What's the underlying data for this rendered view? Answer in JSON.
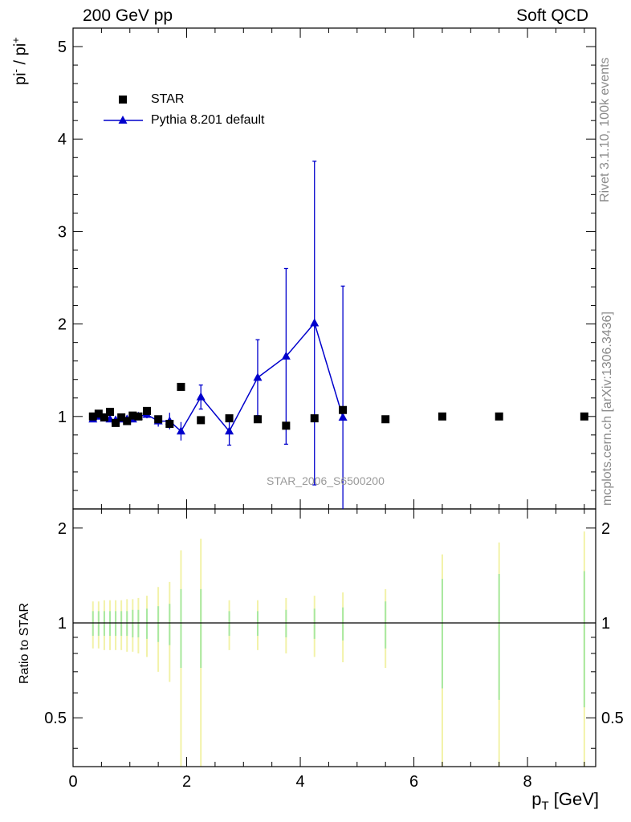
{
  "header": {
    "left": "200 GeV pp",
    "right": "Soft QCD"
  },
  "side": {
    "rivet": "Rivet 3.1.10,  100k events",
    "mcplots": "mcplots.cern.ch [arXiv:1306.3436]"
  },
  "watermark": "STAR_2006_S6500200",
  "ylabel_main": {
    "base": "pi",
    "sup1": "-",
    "mid": " / pi",
    "sup2": "+"
  },
  "ylabel_ratio": "Ratio to STAR",
  "xlabel": {
    "base": "p",
    "sub": "T",
    "unit": " [GeV]"
  },
  "legend": {
    "star": "STAR",
    "pythia": "Pythia 8.201 default"
  },
  "colors": {
    "pythia": "#0000cc",
    "data": "#000000",
    "band_inner": "#a8e8a0",
    "band_outer": "#f2f2a8"
  },
  "chart_data": {
    "type": "scatter",
    "xlim": [
      0,
      9.2
    ],
    "ylim_main": [
      0,
      5.2
    ],
    "ylim_ratio": [
      0.35,
      2.3
    ],
    "xticks": [
      0,
      2,
      4,
      6,
      8
    ],
    "yticks_main": [
      1,
      2,
      3,
      4,
      5
    ],
    "yticks_ratio": [
      0.5,
      1,
      2
    ],
    "ratio_reference": 1,
    "star": {
      "name": "STAR",
      "x": [
        0.35,
        0.45,
        0.55,
        0.65,
        0.75,
        0.85,
        0.95,
        1.05,
        1.15,
        1.3,
        1.5,
        1.7,
        1.9,
        2.25,
        2.75,
        3.25,
        3.75,
        4.25,
        4.75,
        5.5,
        6.5,
        7.5,
        9.0
      ],
      "y": [
        1.0,
        1.03,
        0.99,
        1.05,
        0.93,
        0.99,
        0.95,
        1.01,
        1.0,
        1.06,
        0.97,
        0.92,
        1.32,
        0.96,
        0.98,
        0.97,
        0.9,
        0.98,
        1.07,
        0.97,
        1.0,
        1.0,
        1.0
      ],
      "rel_err_inner": [
        0.09,
        0.09,
        0.09,
        0.09,
        0.09,
        0.09,
        0.09,
        0.1,
        0.1,
        0.11,
        0.13,
        0.15,
        0.28,
        0.28,
        0.09,
        0.09,
        0.1,
        0.11,
        0.12,
        0.17,
        0.38,
        0.43,
        0.46
      ],
      "rel_err_outer": [
        0.17,
        0.17,
        0.18,
        0.18,
        0.18,
        0.18,
        0.19,
        0.19,
        0.2,
        0.22,
        0.3,
        0.35,
        0.7,
        0.85,
        0.18,
        0.18,
        0.2,
        0.22,
        0.25,
        0.28,
        0.65,
        0.8,
        0.95
      ]
    },
    "pythia": {
      "name": "Pythia 8.201 default",
      "x": [
        0.35,
        0.45,
        0.55,
        0.65,
        0.75,
        0.85,
        0.95,
        1.05,
        1.15,
        1.3,
        1.5,
        1.7,
        1.9,
        2.25,
        2.75,
        3.25,
        3.75,
        4.25,
        4.75
      ],
      "y": [
        0.97,
        1.0,
        0.98,
        0.97,
        0.96,
        0.97,
        0.97,
        0.97,
        1.0,
        1.02,
        0.95,
        0.95,
        0.84,
        1.21,
        0.84,
        1.42,
        1.65,
        2.01,
        0.99
      ],
      "err": [
        0.03,
        0.03,
        0.03,
        0.03,
        0.03,
        0.03,
        0.03,
        0.03,
        0.03,
        0.04,
        0.06,
        0.09,
        0.1,
        0.13,
        0.15,
        0.41,
        0.95,
        1.75,
        1.42
      ]
    }
  }
}
